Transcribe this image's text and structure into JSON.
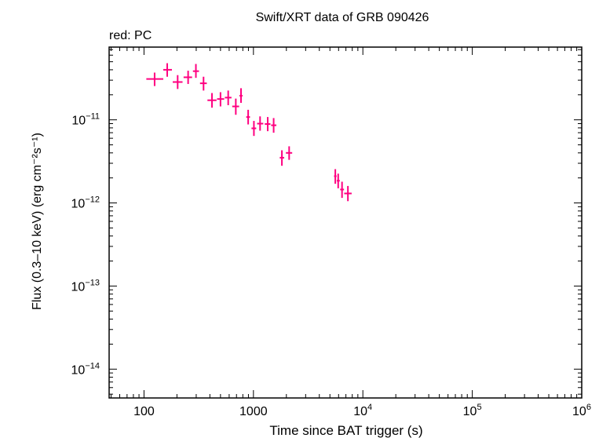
{
  "chart_data": {
    "type": "scatter",
    "title": "Swift/XRT data of GRB 090426",
    "subtitle": "red: PC",
    "xlabel": "Time since BAT trigger (s)",
    "ylabel": "Flux (0.3–10 keV) (erg cm⁻²s⁻¹)",
    "xscale": "log",
    "yscale": "log",
    "xlim": [
      48,
      1000000
    ],
    "ylim": [
      4.5e-15,
      7.5e-11
    ],
    "x_ticks": [
      {
        "value": 100,
        "label": "100",
        "exp": ""
      },
      {
        "value": 1000,
        "label": "1000",
        "exp": ""
      },
      {
        "value": 10000,
        "label": "10",
        "exp": "4"
      },
      {
        "value": 100000,
        "label": "10",
        "exp": "5"
      },
      {
        "value": 1000000,
        "label": "10",
        "exp": "6"
      }
    ],
    "y_ticks": [
      {
        "value": 1e-11,
        "label": "10",
        "exp": "−11"
      },
      {
        "value": 1e-12,
        "label": "10",
        "exp": "−12"
      },
      {
        "value": 1e-13,
        "label": "10",
        "exp": "−13"
      },
      {
        "value": 1e-14,
        "label": "10",
        "exp": "−14"
      }
    ],
    "grid": false,
    "series": [
      {
        "name": "PC",
        "color": "#ff0080",
        "points": [
          {
            "x": 125,
            "xlo": 105,
            "xhi": 150,
            "y": 3.1e-11,
            "ylo": 2.55e-11,
            "yhi": 3.7e-11
          },
          {
            "x": 163,
            "xlo": 150,
            "xhi": 180,
            "y": 4e-11,
            "ylo": 3.3e-11,
            "yhi": 4.8e-11
          },
          {
            "x": 203,
            "xlo": 183,
            "xhi": 225,
            "y": 2.85e-11,
            "ylo": 2.35e-11,
            "yhi": 3.45e-11
          },
          {
            "x": 253,
            "xlo": 230,
            "xhi": 275,
            "y": 3.25e-11,
            "ylo": 2.7e-11,
            "yhi": 3.9e-11
          },
          {
            "x": 298,
            "xlo": 280,
            "xhi": 318,
            "y": 3.85e-11,
            "ylo": 3.2e-11,
            "yhi": 4.7e-11
          },
          {
            "x": 350,
            "xlo": 325,
            "xhi": 375,
            "y": 2.75e-11,
            "ylo": 2.25e-11,
            "yhi": 3.3e-11
          },
          {
            "x": 418,
            "xlo": 380,
            "xhi": 460,
            "y": 1.72e-11,
            "ylo": 1.4e-11,
            "yhi": 2.1e-11
          },
          {
            "x": 500,
            "xlo": 465,
            "xhi": 540,
            "y": 1.78e-11,
            "ylo": 1.45e-11,
            "yhi": 2.15e-11
          },
          {
            "x": 588,
            "xlo": 548,
            "xhi": 630,
            "y": 1.85e-11,
            "ylo": 1.5e-11,
            "yhi": 2.25e-11
          },
          {
            "x": 690,
            "xlo": 640,
            "xhi": 740,
            "y": 1.45e-11,
            "ylo": 1.15e-11,
            "yhi": 1.8e-11
          },
          {
            "x": 770,
            "xlo": 745,
            "xhi": 795,
            "y": 1.95e-11,
            "ylo": 1.6e-11,
            "yhi": 2.4e-11
          },
          {
            "x": 895,
            "xlo": 860,
            "xhi": 930,
            "y": 1.08e-11,
            "ylo": 8.8e-12,
            "yhi": 1.32e-11
          },
          {
            "x": 1010,
            "xlo": 960,
            "xhi": 1060,
            "y": 7.9e-12,
            "ylo": 6.4e-12,
            "yhi": 9.7e-12
          },
          {
            "x": 1150,
            "xlo": 1080,
            "xhi": 1230,
            "y": 9e-12,
            "ylo": 7.4e-12,
            "yhi": 1.1e-11
          },
          {
            "x": 1350,
            "xlo": 1270,
            "xhi": 1430,
            "y": 8.9e-12,
            "ylo": 7.3e-12,
            "yhi": 1.08e-11
          },
          {
            "x": 1530,
            "xlo": 1450,
            "xhi": 1620,
            "y": 8.6e-12,
            "ylo": 7e-12,
            "yhi": 1.05e-11
          },
          {
            "x": 1820,
            "xlo": 1740,
            "xhi": 1910,
            "y": 3.5e-12,
            "ylo": 2.8e-12,
            "yhi": 4.3e-12
          },
          {
            "x": 2120,
            "xlo": 1980,
            "xhi": 2260,
            "y": 4e-12,
            "ylo": 3.3e-12,
            "yhi": 4.8e-12
          },
          {
            "x": 5600,
            "xlo": 5450,
            "xhi": 5750,
            "y": 2.1e-12,
            "ylo": 1.7e-12,
            "yhi": 2.55e-12
          },
          {
            "x": 5950,
            "xlo": 5780,
            "xhi": 6150,
            "y": 1.85e-12,
            "ylo": 1.5e-12,
            "yhi": 2.25e-12
          },
          {
            "x": 6450,
            "xlo": 6200,
            "xhi": 6720,
            "y": 1.45e-12,
            "ylo": 1.15e-12,
            "yhi": 1.8e-12
          },
          {
            "x": 7300,
            "xlo": 6750,
            "xhi": 7900,
            "y": 1.3e-12,
            "ylo": 1.05e-12,
            "yhi": 1.6e-12
          }
        ]
      }
    ]
  }
}
